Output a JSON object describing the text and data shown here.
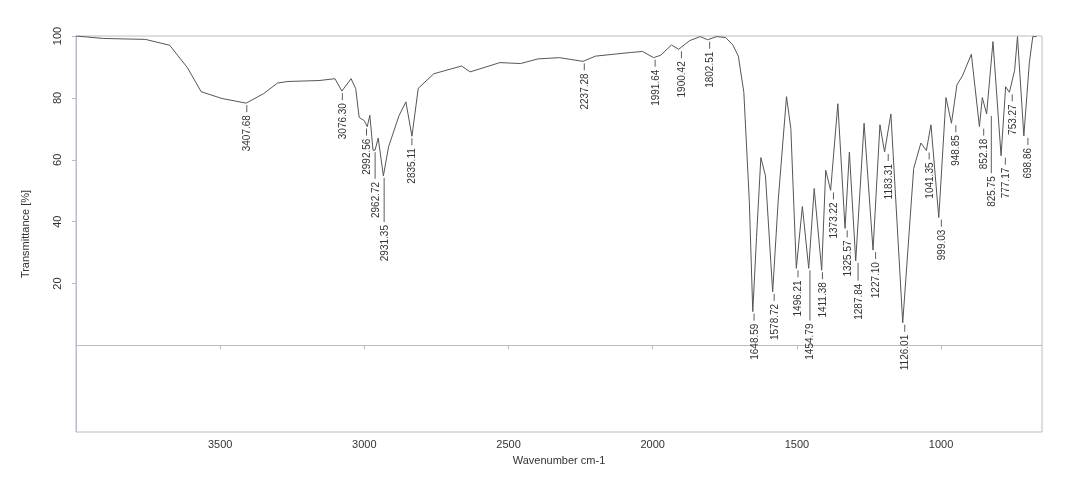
{
  "chart_data": {
    "type": "line",
    "xlabel": "Wavenumber cm-1",
    "ylabel": "Transmittance [%]",
    "xlim": [
      4000,
      650
    ],
    "xticks": [
      3500,
      3000,
      2500,
      2000,
      1500,
      1000
    ],
    "ylim": [
      -28,
      100
    ],
    "yticks": [
      20,
      40,
      60,
      80,
      100
    ],
    "grid": false,
    "series": [
      {
        "color": "#555555",
        "x": [
          4000,
          3904,
          3759,
          3675,
          3614,
          3566,
          3494,
          3410,
          3349,
          3301,
          3265,
          3157,
          3102,
          3078,
          3046,
          3030,
          3018,
          3000,
          2990,
          2981,
          2970,
          2963,
          2952,
          2934,
          2916,
          2880,
          2856,
          2835,
          2813,
          2759,
          2663,
          2633,
          2530,
          2458,
          2398,
          2323,
          2242,
          2198,
          2073,
          2035,
          1997,
          1972,
          1935,
          1910,
          1872,
          1835,
          1810,
          1778,
          1747,
          1722,
          1703,
          1684,
          1665,
          1653,
          1640,
          1625,
          1609,
          1584,
          1565,
          1536,
          1521,
          1502,
          1481,
          1459,
          1440,
          1414,
          1400,
          1383,
          1358,
          1333,
          1318,
          1296,
          1267,
          1236,
          1212,
          1196,
          1174,
          1133,
          1095,
          1070,
          1051,
          1035,
          1008,
          983,
          964,
          945,
          926,
          895,
          867,
          857,
          842,
          820,
          792,
          776,
          763,
          745,
          735,
          713,
          694,
          682,
          669
        ],
        "values": [
          100,
          99.2,
          98.9,
          97,
          89.8,
          82,
          79.8,
          78.3,
          81.4,
          84.8,
          85.3,
          85.6,
          86.2,
          82.2,
          86.2,
          83,
          73.7,
          72.6,
          70.7,
          74.4,
          63.1,
          63.1,
          67,
          54.8,
          64.2,
          74.2,
          78.7,
          67.6,
          83.1,
          87.8,
          90.3,
          88.4,
          91.4,
          91.1,
          92.6,
          93,
          91.8,
          93.5,
          94.7,
          95,
          93,
          93.8,
          97.1,
          95.7,
          98.5,
          99.8,
          98.8,
          99.8,
          99.5,
          97.1,
          93.5,
          81.8,
          46.6,
          10.9,
          34.9,
          60.7,
          54.8,
          17.3,
          46.6,
          80.4,
          70.1,
          24.9,
          44.9,
          24.9,
          50.7,
          24.3,
          56.6,
          50.1,
          78.1,
          37.8,
          62.5,
          27.3,
          71.8,
          30.8,
          71.3,
          62.5,
          74.8,
          7.3,
          57.2,
          65.4,
          63,
          71.3,
          41.3,
          80.1,
          71.8,
          84.2,
          87.1,
          94.1,
          70.7,
          80.1,
          74.8,
          98.2,
          61.3,
          83.6,
          81.8,
          88.9,
          99.8,
          67.7,
          91.2,
          99.8,
          99.8
        ]
      }
    ],
    "annotations": [
      {
        "text": "3407.68",
        "x": 3407.68,
        "y": 78.3
      },
      {
        "text": "3076.30",
        "x": 3076.3,
        "y": 82.2
      },
      {
        "text": "2992.56",
        "x": 2992.56,
        "y": 70.7
      },
      {
        "text": "2962.72",
        "x": 2962.72,
        "y": 63.1
      },
      {
        "text": "2931.35",
        "x": 2931.35,
        "y": 54.8
      },
      {
        "text": "2835.11",
        "x": 2835.11,
        "y": 67.6
      },
      {
        "text": "2237.28",
        "x": 2237.28,
        "y": 91.8
      },
      {
        "text": "1991.64",
        "x": 1991.64,
        "y": 93
      },
      {
        "text": "1900.42",
        "x": 1900.42,
        "y": 95.7
      },
      {
        "text": "1802.51",
        "x": 1802.51,
        "y": 98.8
      },
      {
        "text": "1648.59",
        "x": 1648.59,
        "y": 10.9
      },
      {
        "text": "1578.72",
        "x": 1578.72,
        "y": 17.3
      },
      {
        "text": "1496.21",
        "x": 1496.21,
        "y": 24.9
      },
      {
        "text": "1454.79",
        "x": 1454.79,
        "y": 24.9
      },
      {
        "text": "1411.38",
        "x": 1411.38,
        "y": 24.3
      },
      {
        "text": "1373.22",
        "x": 1373.22,
        "y": 50.1
      },
      {
        "text": "1325.57",
        "x": 1325.57,
        "y": 37.8
      },
      {
        "text": "1287.84",
        "x": 1287.84,
        "y": 27.3
      },
      {
        "text": "1227.10",
        "x": 1227.1,
        "y": 30.8
      },
      {
        "text": "1183.31",
        "x": 1183.31,
        "y": 62.5
      },
      {
        "text": "1126.01",
        "x": 1126.01,
        "y": 7.3
      },
      {
        "text": "1041.35",
        "x": 1041.35,
        "y": 63
      },
      {
        "text": "999.03",
        "x": 999.03,
        "y": 41.3
      },
      {
        "text": "948.85",
        "x": 948.85,
        "y": 71.8
      },
      {
        "text": "852.18",
        "x": 852.18,
        "y": 70.7
      },
      {
        "text": "825.75",
        "x": 825.75,
        "y": 74.8
      },
      {
        "text": "777.17",
        "x": 777.17,
        "y": 61.3
      },
      {
        "text": "753.27",
        "x": 753.27,
        "y": 81.8
      },
      {
        "text": "698.86",
        "x": 698.86,
        "y": 67.7
      }
    ]
  }
}
